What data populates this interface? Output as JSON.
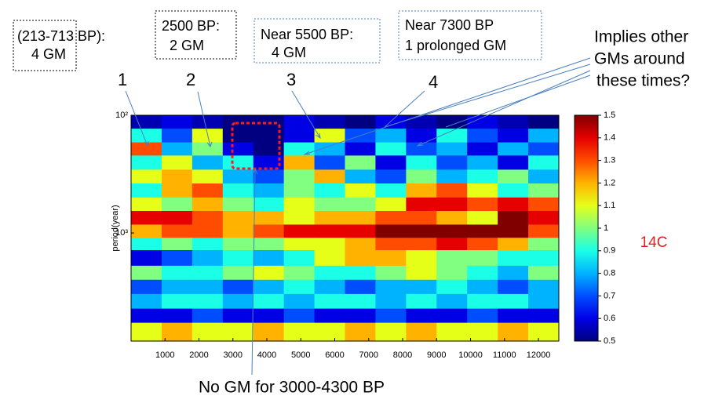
{
  "chart_data": {
    "type": "heatmap",
    "ylabel": "period(year)",
    "xlim": [
      0,
      12600
    ],
    "xticks": [
      1000,
      2000,
      3000,
      4000,
      5000,
      6000,
      7000,
      8000,
      9000,
      10000,
      11000,
      12000
    ],
    "ylim": [
      100,
      8300
    ],
    "yscale": "log",
    "yticks": [
      {
        "value": 100,
        "label": "10²"
      },
      {
        "value": 1000,
        "label": "10³"
      }
    ],
    "x_edges": [
      0,
      900,
      1800,
      2700,
      3600,
      4500,
      5400,
      6300,
      7200,
      8100,
      9000,
      9900,
      10800,
      11700,
      12600
    ],
    "y_edges": [
      100,
      130,
      170,
      220,
      290,
      380,
      500,
      650,
      850,
      1100,
      1400,
      1900,
      2500,
      3300,
      4400,
      5800,
      8300
    ],
    "z": [
      [
        0.55,
        0.6,
        0.55,
        0.5,
        0.5,
        0.6,
        0.55,
        0.5,
        0.6,
        0.55,
        0.5,
        0.6,
        0.55,
        0.5
      ],
      [
        0.9,
        0.7,
        1.1,
        0.5,
        0.5,
        0.6,
        1.1,
        0.7,
        0.8,
        0.6,
        0.9,
        0.7,
        0.6,
        0.8
      ],
      [
        1.3,
        0.8,
        1.0,
        0.6,
        0.5,
        0.9,
        0.8,
        0.6,
        0.9,
        0.7,
        0.8,
        0.6,
        0.8,
        0.7
      ],
      [
        0.9,
        1.1,
        0.8,
        0.9,
        0.6,
        1.2,
        0.7,
        1.0,
        0.6,
        0.9,
        0.7,
        0.8,
        0.6,
        0.9
      ],
      [
        1.1,
        1.2,
        1.1,
        0.8,
        0.7,
        1.0,
        1.2,
        0.8,
        0.7,
        1.0,
        0.8,
        0.9,
        1.0,
        0.8
      ],
      [
        0.9,
        1.2,
        1.3,
        0.9,
        0.8,
        1.0,
        0.9,
        1.1,
        0.9,
        1.2,
        1.3,
        1.1,
        0.9,
        1.0
      ],
      [
        1.1,
        1.0,
        1.2,
        1.0,
        0.9,
        1.1,
        1.0,
        1.0,
        1.1,
        1.4,
        1.4,
        1.3,
        1.4,
        1.3
      ],
      [
        1.4,
        1.4,
        1.3,
        1.2,
        1.2,
        1.1,
        1.2,
        1.2,
        1.3,
        1.3,
        1.2,
        1.1,
        1.5,
        1.4
      ],
      [
        1.2,
        1.3,
        1.3,
        1.2,
        1.3,
        1.4,
        1.4,
        1.4,
        1.5,
        1.5,
        1.5,
        1.5,
        1.5,
        1.3
      ],
      [
        0.9,
        1.0,
        0.9,
        1.0,
        1.0,
        1.1,
        1.1,
        1.2,
        1.3,
        1.3,
        1.4,
        1.3,
        1.2,
        1.0
      ],
      [
        0.6,
        0.7,
        0.8,
        0.9,
        0.8,
        0.9,
        1.1,
        1.2,
        1.2,
        1.1,
        1.0,
        1.0,
        0.9,
        0.9
      ],
      [
        1.0,
        0.9,
        0.9,
        1.0,
        1.1,
        1.0,
        0.9,
        0.9,
        1.0,
        1.1,
        1.0,
        0.9,
        0.8,
        1.0
      ],
      [
        0.7,
        0.8,
        0.8,
        0.7,
        0.8,
        0.9,
        0.8,
        0.7,
        0.8,
        0.8,
        0.9,
        0.8,
        0.7,
        0.8
      ],
      [
        0.8,
        0.9,
        0.9,
        0.8,
        0.9,
        0.8,
        0.9,
        0.9,
        0.8,
        0.9,
        0.8,
        0.9,
        0.9,
        0.8
      ],
      [
        0.6,
        0.6,
        0.7,
        0.6,
        0.6,
        0.7,
        0.6,
        0.6,
        0.7,
        0.6,
        0.6,
        0.7,
        0.6,
        0.6
      ],
      [
        1.1,
        1.2,
        1.1,
        1.1,
        1.2,
        1.1,
        1.1,
        1.2,
        1.1,
        1.2,
        1.1,
        1.1,
        1.2,
        1.1
      ]
    ],
    "clim": [
      0.5,
      1.5
    ],
    "colormap": "jet",
    "cticks": [
      0.5,
      0.6,
      0.7,
      0.8,
      0.9,
      1,
      1.1,
      1.2,
      1.3,
      1.4,
      1.5
    ],
    "colorbar_label": "14C",
    "annotations": {
      "boxes": [
        [
          "(213-713 BP):",
          "4 GM"
        ],
        [
          "2500 BP:",
          "2 GM"
        ],
        [
          "Near 5500 BP:",
          "4 GM"
        ],
        [
          "Near 7300 BP",
          "1 prolonged GM"
        ]
      ],
      "markers": [
        "1",
        "2",
        "3",
        "4"
      ],
      "note": [
        "Implies other",
        "GMs around",
        "these times?"
      ],
      "bottom_note": "No GM for 3000-4300 BP"
    }
  }
}
